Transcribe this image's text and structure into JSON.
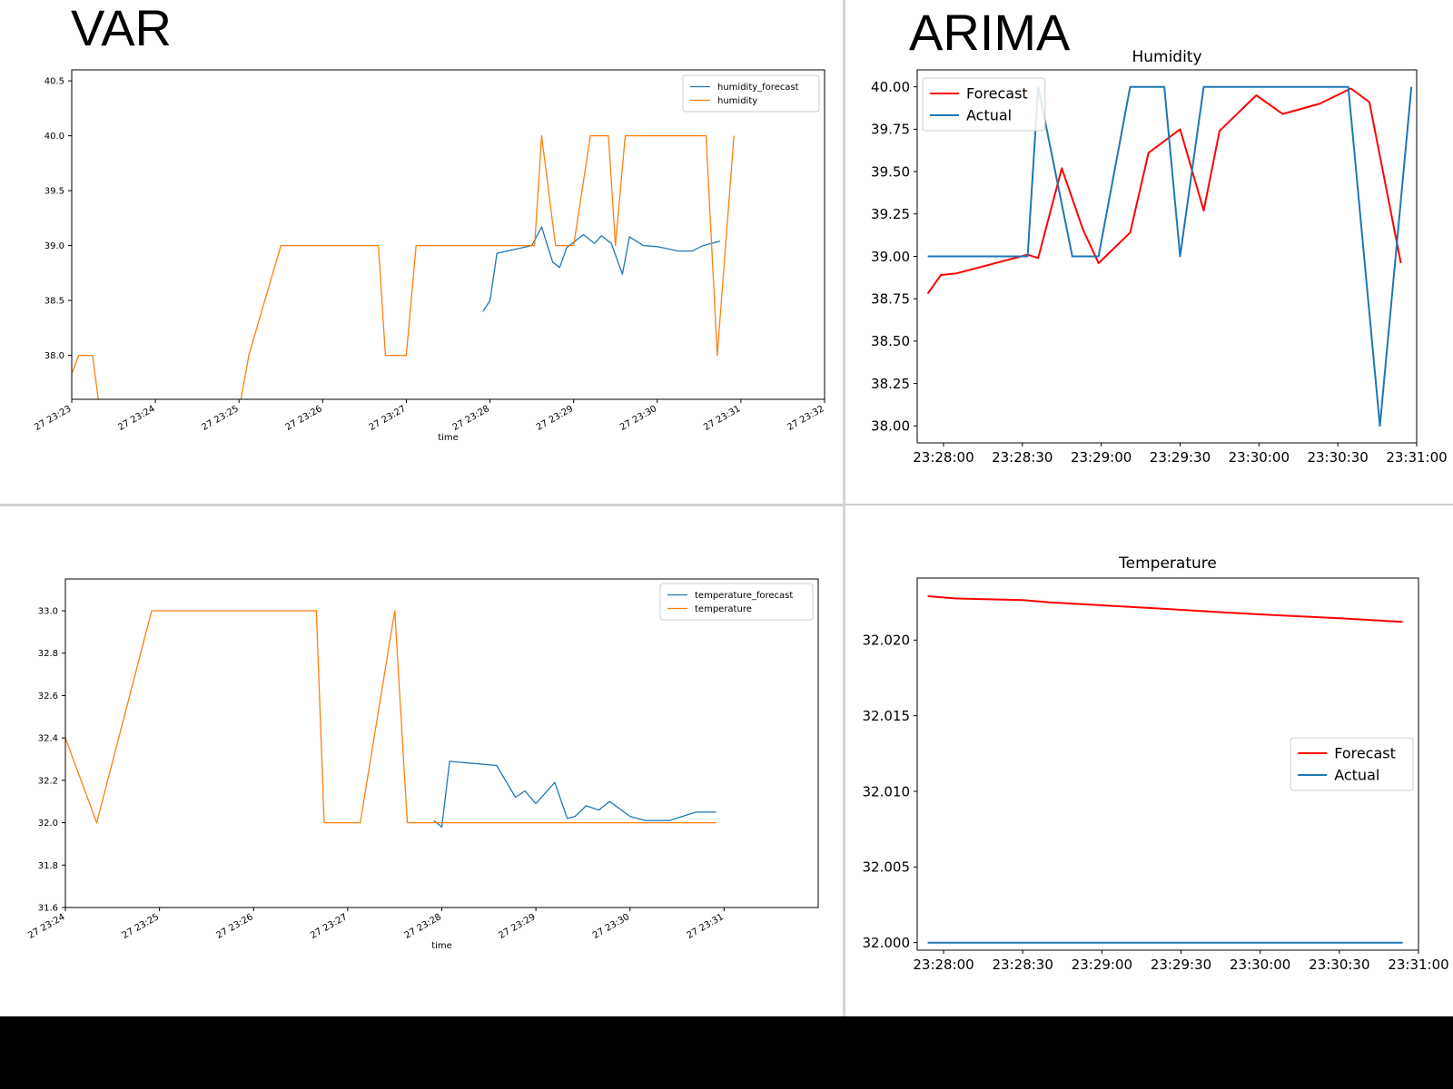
{
  "headings": {
    "left": "VAR",
    "right": "ARIMA"
  },
  "colors": {
    "matplotlib_blue": "#1f77b4",
    "matplotlib_orange": "#ff7f0e",
    "forecast_red": "#ff0000",
    "actual_blue": "#1f77b4"
  },
  "chart_data": [
    {
      "id": "var_humidity",
      "type": "line",
      "title": "",
      "xlabel": "time",
      "ylabel": "",
      "xlim": [
        "27 23:23",
        "27 23:32"
      ],
      "ylim": [
        37.6,
        40.6
      ],
      "xticks": [
        "27 23:23",
        "27 23:24",
        "27 23:25",
        "27 23:26",
        "27 23:27",
        "27 23:28",
        "27 23:29",
        "27 23:30",
        "27 23:31",
        "27 23:32"
      ],
      "yticks": [
        "38.0",
        "38.5",
        "39.0",
        "39.5",
        "40.0",
        "40.5"
      ],
      "legend": "upper right",
      "grid": false,
      "series": [
        {
          "name": "humidity_forecast",
          "color": "#1f77b4",
          "points": [
            [
              "23:27:55",
              38.4
            ],
            [
              "23:28:00",
              38.5
            ],
            [
              "23:28:05",
              38.93
            ],
            [
              "23:28:30",
              39.0
            ],
            [
              "23:28:37",
              39.17
            ],
            [
              "23:28:45",
              38.85
            ],
            [
              "23:28:50",
              38.8
            ],
            [
              "23:28:55",
              38.98
            ],
            [
              "23:29:07",
              39.1
            ],
            [
              "23:29:15",
              39.02
            ],
            [
              "23:29:20",
              39.09
            ],
            [
              "23:29:27",
              39.02
            ],
            [
              "23:29:35",
              38.74
            ],
            [
              "23:29:40",
              39.08
            ],
            [
              "23:29:50",
              39.0
            ],
            [
              "23:30:00",
              38.99
            ],
            [
              "23:30:15",
              38.95
            ],
            [
              "23:30:25",
              38.95
            ],
            [
              "23:30:33",
              39.0
            ],
            [
              "23:30:45",
              39.04
            ]
          ]
        },
        {
          "name": "humidity",
          "color": "#ff7f0e",
          "points": [
            [
              "23:22:50",
              37.5
            ],
            [
              "23:23:05",
              38.0
            ],
            [
              "23:23:15",
              38.0
            ],
            [
              "23:23:20",
              37.5
            ],
            [
              "23:25:00",
              37.5
            ],
            [
              "23:25:07",
              38.0
            ],
            [
              "23:25:30",
              39.0
            ],
            [
              "23:26:40",
              39.0
            ],
            [
              "23:26:45",
              38.0
            ],
            [
              "23:27:00",
              38.0
            ],
            [
              "23:27:07",
              39.0
            ],
            [
              "23:28:32",
              39.0
            ],
            [
              "23:28:37",
              40.0
            ],
            [
              "23:28:47",
              39.0
            ],
            [
              "23:29:00",
              39.0
            ],
            [
              "23:29:12",
              40.0
            ],
            [
              "23:29:25",
              40.0
            ],
            [
              "23:29:30",
              39.0
            ],
            [
              "23:29:37",
              40.0
            ],
            [
              "23:30:35",
              40.0
            ],
            [
              "23:30:43",
              38.0
            ],
            [
              "23:30:55",
              40.0
            ]
          ]
        }
      ]
    },
    {
      "id": "var_temperature",
      "type": "line",
      "title": "",
      "xlabel": "time",
      "ylabel": "",
      "xlim": [
        "27 23:24",
        "27 23:32"
      ],
      "ylim": [
        31.6,
        33.15
      ],
      "xticks": [
        "27 23:24",
        "27 23:25",
        "27 23:26",
        "27 23:27",
        "27 23:28",
        "27 23:29",
        "27 23:30",
        "27 23:31"
      ],
      "yticks": [
        "31.6",
        "31.8",
        "32.0",
        "32.2",
        "32.4",
        "32.6",
        "32.8",
        "33.0"
      ],
      "legend": "upper right",
      "grid": false,
      "series": [
        {
          "name": "temperature_forecast",
          "color": "#1f77b4",
          "points": [
            [
              "23:27:55",
              32.01
            ],
            [
              "23:28:00",
              31.98
            ],
            [
              "23:28:05",
              32.29
            ],
            [
              "23:28:35",
              32.27
            ],
            [
              "23:28:47",
              32.12
            ],
            [
              "23:28:53",
              32.15
            ],
            [
              "23:29:00",
              32.09
            ],
            [
              "23:29:12",
              32.19
            ],
            [
              "23:29:20",
              32.02
            ],
            [
              "23:29:25",
              32.03
            ],
            [
              "23:29:32",
              32.08
            ],
            [
              "23:29:40",
              32.06
            ],
            [
              "23:29:47",
              32.1
            ],
            [
              "23:30:00",
              32.03
            ],
            [
              "23:30:10",
              32.01
            ],
            [
              "23:30:25",
              32.01
            ],
            [
              "23:30:42",
              32.05
            ],
            [
              "23:30:55",
              32.05
            ]
          ]
        },
        {
          "name": "temperature",
          "color": "#ff7f0e",
          "points": [
            [
              "23:24:00",
              32.4
            ],
            [
              "23:24:20",
              32.0
            ],
            [
              "23:24:55",
              33.0
            ],
            [
              "23:26:40",
              33.0
            ],
            [
              "23:26:45",
              32.0
            ],
            [
              "23:27:08",
              32.0
            ],
            [
              "23:27:30",
              33.0
            ],
            [
              "23:27:38",
              32.0
            ],
            [
              "23:30:55",
              32.0
            ]
          ]
        }
      ]
    },
    {
      "id": "arima_humidity",
      "type": "line",
      "title": "Humidity",
      "xlabel": "",
      "ylabel": "",
      "xlim": [
        "23:27:50",
        "23:31:00"
      ],
      "ylim": [
        37.9,
        40.1
      ],
      "xticks": [
        "23:28:00",
        "23:28:30",
        "23:29:00",
        "23:29:30",
        "23:30:00",
        "23:30:30",
        "23:31:00"
      ],
      "yticks": [
        "38.00",
        "38.25",
        "38.50",
        "38.75",
        "39.00",
        "39.25",
        "39.50",
        "39.75",
        "40.00"
      ],
      "legend": "upper left",
      "grid": false,
      "series": [
        {
          "name": "Forecast",
          "color": "#ff0000",
          "points": [
            [
              "23:27:54",
              38.78
            ],
            [
              "23:27:59",
              38.89
            ],
            [
              "23:28:05",
              38.9
            ],
            [
              "23:28:32",
              39.01
            ],
            [
              "23:28:36",
              38.99
            ],
            [
              "23:28:45",
              39.52
            ],
            [
              "23:28:53",
              39.16
            ],
            [
              "23:28:59",
              38.96
            ],
            [
              "23:29:11",
              39.14
            ],
            [
              "23:29:18",
              39.61
            ],
            [
              "23:29:30",
              39.75
            ],
            [
              "23:29:39",
              39.27
            ],
            [
              "23:29:45",
              39.74
            ],
            [
              "23:29:59",
              39.95
            ],
            [
              "23:30:09",
              39.84
            ],
            [
              "23:30:23",
              39.9
            ],
            [
              "23:30:35",
              39.99
            ],
            [
              "23:30:42",
              39.91
            ],
            [
              "23:30:54",
              38.96
            ]
          ]
        },
        {
          "name": "Actual",
          "color": "#1f77b4",
          "points": [
            [
              "23:27:54",
              39.0
            ],
            [
              "23:28:32",
              39.0
            ],
            [
              "23:28:36",
              40.0
            ],
            [
              "23:28:49",
              39.0
            ],
            [
              "23:28:59",
              39.0
            ],
            [
              "23:29:11",
              40.0
            ],
            [
              "23:29:24",
              40.0
            ],
            [
              "23:29:30",
              39.0
            ],
            [
              "23:29:39",
              40.0
            ],
            [
              "23:30:34",
              40.0
            ],
            [
              "23:30:46",
              38.0
            ],
            [
              "23:30:58",
              40.0
            ]
          ]
        }
      ]
    },
    {
      "id": "arima_temperature",
      "type": "line",
      "title": "Temperature",
      "xlabel": "",
      "ylabel": "",
      "xlim": [
        "23:27:50",
        "23:31:00"
      ],
      "ylim": [
        31.9995,
        32.0241
      ],
      "xticks": [
        "23:28:00",
        "23:28:30",
        "23:29:00",
        "23:29:30",
        "23:30:00",
        "23:30:30",
        "23:31:00"
      ],
      "yticks": [
        "32.000",
        "32.005",
        "32.010",
        "32.015",
        "32.020"
      ],
      "legend": "center right",
      "grid": false,
      "series": [
        {
          "name": "Forecast",
          "color": "#ff0000",
          "points": [
            [
              "23:27:54",
              32.0229
            ],
            [
              "23:28:05",
              32.02275
            ],
            [
              "23:28:30",
              32.02265
            ],
            [
              "23:28:40",
              32.0225
            ],
            [
              "23:29:00",
              32.0223
            ],
            [
              "23:29:20",
              32.0221
            ],
            [
              "23:29:40",
              32.0219
            ],
            [
              "23:30:00",
              32.0217
            ],
            [
              "23:30:30",
              32.02145
            ],
            [
              "23:30:54",
              32.0212
            ]
          ]
        },
        {
          "name": "Actual",
          "color": "#1f77b4",
          "points": [
            [
              "23:27:54",
              32.0
            ],
            [
              "23:30:54",
              32.0
            ]
          ]
        }
      ]
    }
  ]
}
